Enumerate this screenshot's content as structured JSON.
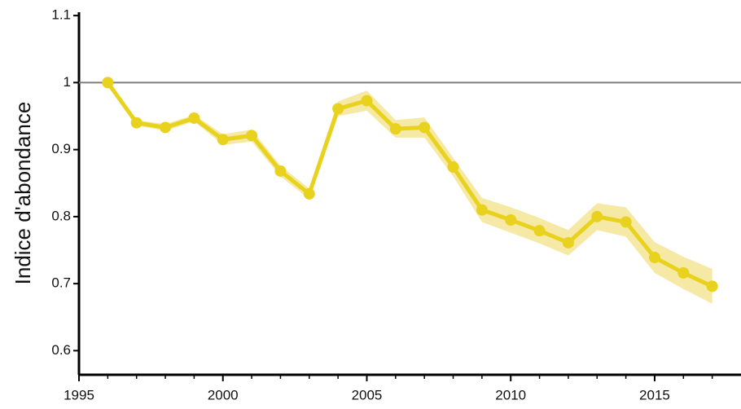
{
  "chart_data": {
    "type": "line",
    "y_label": "Indice d'abondance",
    "x": [
      1996,
      1997,
      1998,
      1999,
      2000,
      2001,
      2002,
      2003,
      2004,
      2005,
      2006,
      2007,
      2008,
      2009,
      2010,
      2011,
      2012,
      2013,
      2014,
      2015,
      2016,
      2017
    ],
    "series": [
      {
        "color": "#e8d21d",
        "band_color": "#f4e48e",
        "values": [
          1.0,
          0.94,
          0.933,
          0.947,
          0.915,
          0.921,
          0.868,
          0.834,
          0.961,
          0.973,
          0.931,
          0.933,
          0.874,
          0.81,
          0.795,
          0.779,
          0.761,
          0.8,
          0.792,
          0.739,
          0.716,
          0.696
        ],
        "lower": [
          1.0,
          0.936,
          0.928,
          0.942,
          0.907,
          0.912,
          0.86,
          0.826,
          0.95,
          0.958,
          0.918,
          0.918,
          0.86,
          0.792,
          0.776,
          0.76,
          0.742,
          0.78,
          0.77,
          0.716,
          0.692,
          0.67
        ],
        "upper": [
          1.0,
          0.944,
          0.938,
          0.952,
          0.923,
          0.93,
          0.876,
          0.842,
          0.972,
          0.988,
          0.944,
          0.948,
          0.888,
          0.828,
          0.814,
          0.798,
          0.78,
          0.82,
          0.814,
          0.762,
          0.74,
          0.722
        ]
      }
    ],
    "reference_line": 1,
    "reference_color": "#7f7f7f",
    "xlim": [
      1995,
      2018
    ],
    "xticks": [
      1995,
      2000,
      2005,
      2010,
      2015
    ],
    "xminorticks": [
      1996,
      1997,
      1998,
      1999,
      2001,
      2002,
      2003,
      2004,
      2006,
      2007,
      2008,
      2009,
      2011,
      2012,
      2013,
      2014,
      2016,
      2017
    ],
    "ylim": [
      0.564,
      1.105
    ],
    "yticks": [
      0.6,
      0.7,
      0.8,
      0.9,
      1,
      1.1
    ]
  }
}
